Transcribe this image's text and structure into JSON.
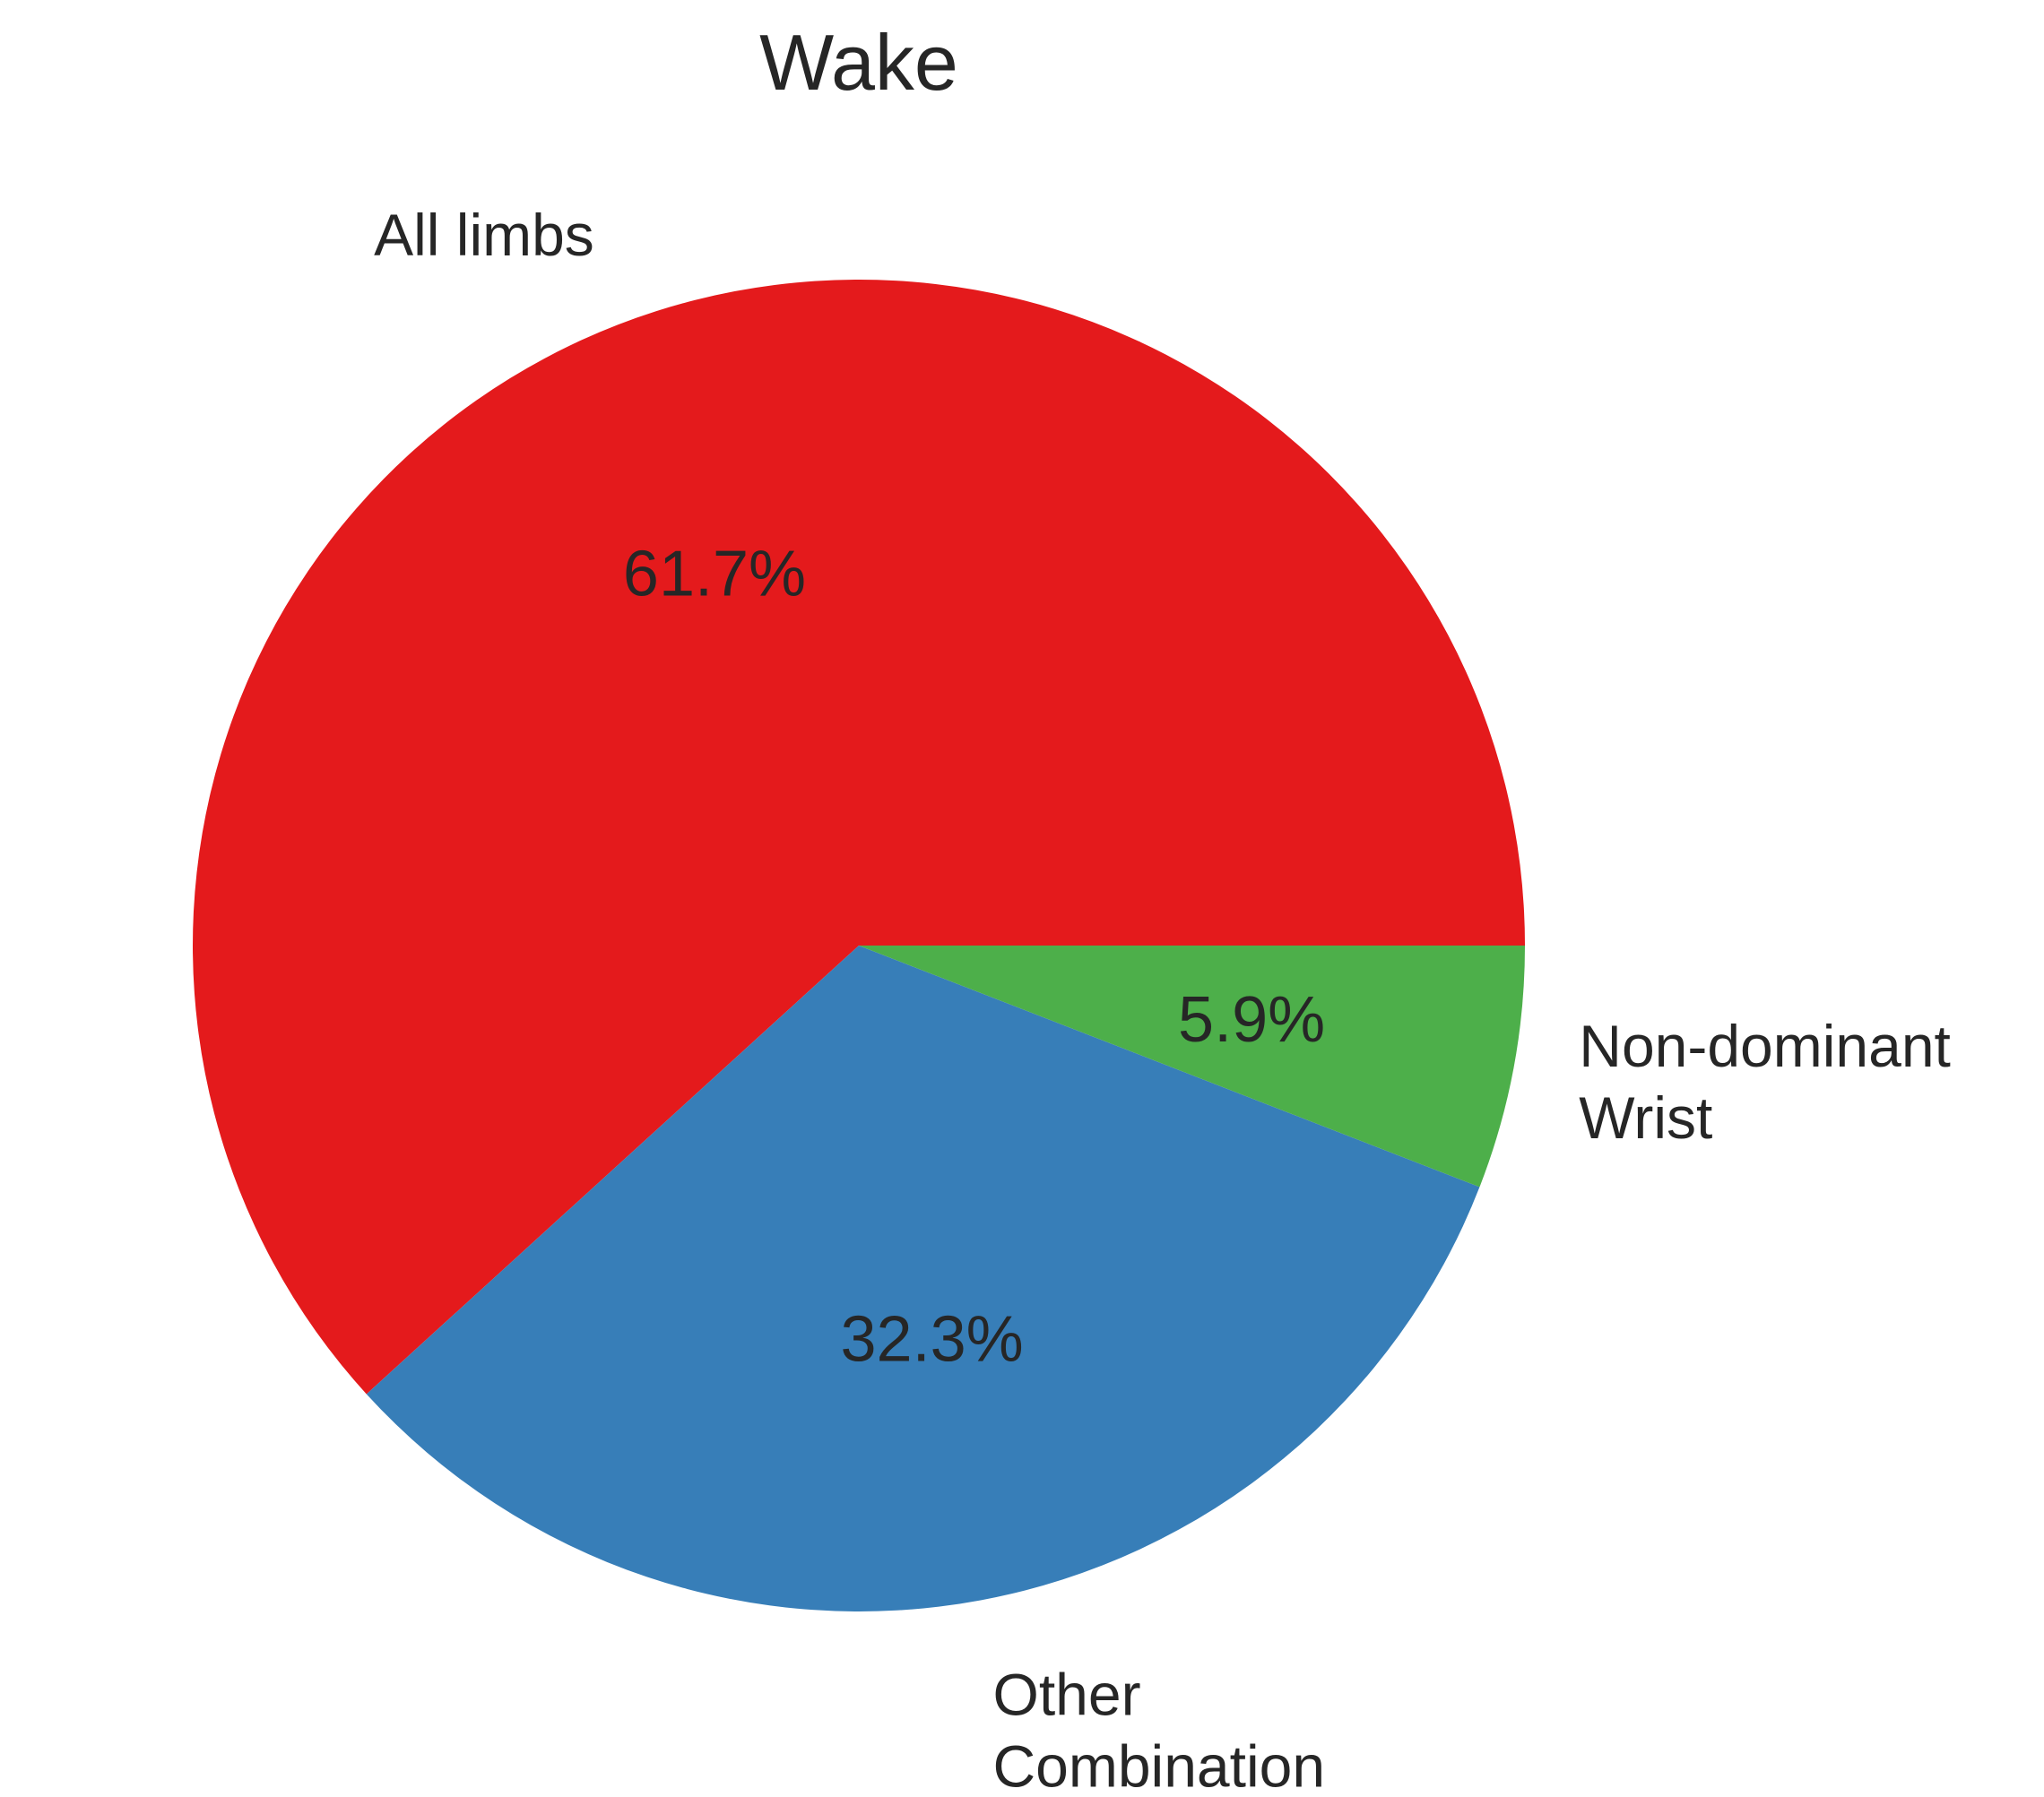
{
  "chart_data": {
    "type": "pie",
    "title": "Wake",
    "slices": [
      {
        "label": [
          "All limbs"
        ],
        "value": 61.7,
        "pct_label": "61.7%",
        "color": "#e41a1c"
      },
      {
        "label": [
          "Other",
          "Combination"
        ],
        "value": 32.3,
        "pct_label": "32.3%",
        "color": "#377eb8"
      },
      {
        "label": [
          "Non-dominant",
          "Wrist"
        ],
        "value": 5.9,
        "pct_label": "5.9%",
        "color": "#4daf4a"
      }
    ],
    "start_angle_deg": 0,
    "direction": "counterclockwise"
  }
}
